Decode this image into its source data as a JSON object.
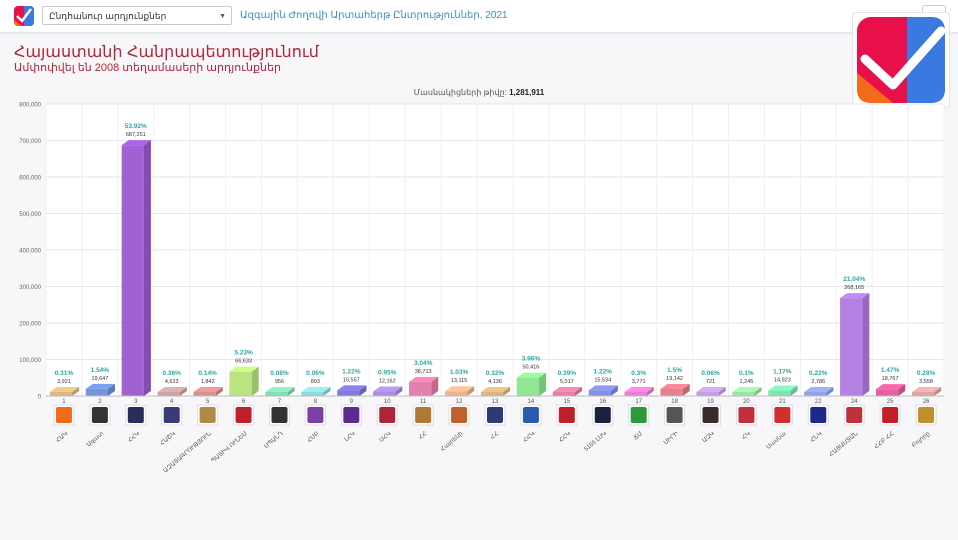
{
  "topbar": {
    "select_value": "Ընդհանուր արդյունքներ",
    "title": "Ազգային Ժողովի Արտահերթ Ընտրություններ, 2021"
  },
  "header": {
    "title": "Հայաստանի Հանրապետությունում",
    "subtitle": "Ամփոփվել են 2008 տեղամասերի արդյունքներ"
  },
  "participants": {
    "label": "Մասնակիցների թիվը:",
    "value": "1,281,911"
  },
  "colors": {
    "accent_red": "#b0253a",
    "link_blue": "#3a8fc9",
    "percent_teal": "#2aa7a5"
  },
  "chart_data": {
    "type": "bar",
    "ylim": [
      0,
      800000
    ],
    "yticks": [
      0,
      100000,
      200000,
      300000,
      400000,
      500000,
      600000,
      700000,
      800000
    ],
    "ytick_labels": [
      "0",
      "100,000",
      "200,000",
      "300,000",
      "400,000",
      "500,000",
      "600,000",
      "700,000",
      "800,000"
    ],
    "grid": true,
    "categories": [
      {
        "num": "1",
        "name": "ՀԱԿ",
        "value": 3921,
        "value_label": "3,921",
        "percent": "0.31%",
        "color": "#d8b47a",
        "logo": "orange-square-icon",
        "logo_color": "#f26a1b"
      },
      {
        "num": "2",
        "name": "Ազատ",
        "value": 19647,
        "value_label": "19,647",
        "percent": "1.54%",
        "color": "#6f8fd6",
        "logo": "swirl-emblem-icon",
        "logo_color": "#333333"
      },
      {
        "num": "3",
        "name": "ՀՀԿ",
        "value": 687251,
        "value_label": "687,251",
        "percent": "53.92%",
        "color": "#9b59d0",
        "logo": "party-logo-icon",
        "logo_color": "#2c2c5a"
      },
      {
        "num": "4",
        "name": "ՀԱՇԿ",
        "value": 4623,
        "value_label": "4,623",
        "percent": "0.36%",
        "color": "#c8a0a0",
        "logo": "shield-emblem-icon",
        "logo_color": "#3a3a7a"
      },
      {
        "num": "5",
        "name": "ԱԶԱՏԱԳՐՈՒԹՅՈՒՆ",
        "value": 1842,
        "value_label": "1,842",
        "percent": "0.14%",
        "color": "#d68a8a",
        "logo": "stripes-logo-icon",
        "logo_color": "#b08a40"
      },
      {
        "num": "6",
        "name": "ՊԱՏԻՎ ՈՒՆԵՄ",
        "value": 66633,
        "value_label": "66,633",
        "percent": "5.23%",
        "color": "#b6e37a",
        "logo": "red-star-icon",
        "logo_color": "#c0202a"
      },
      {
        "num": "7",
        "name": "ՍՊԱՆԴ",
        "value": 956,
        "value_label": "956",
        "percent": "0.08%",
        "color": "#7fdab0",
        "logo": "script-logo-icon",
        "logo_color": "#333333"
      },
      {
        "num": "8",
        "name": "ՀՄԲ",
        "value": 803,
        "value_label": "803",
        "percent": "0.06%",
        "color": "#8ad6d6",
        "logo": "violet-emblem-icon",
        "logo_color": "#7b3fa5"
      },
      {
        "num": "9",
        "name": "ԼՀԿ",
        "value": 15557,
        "value_label": "15,557",
        "percent": "1.22%",
        "color": "#7a73d6",
        "logo": "purple-square-icon",
        "logo_color": "#5b2b8f"
      },
      {
        "num": "10",
        "name": "ՍՀԿ",
        "value": 12162,
        "value_label": "12,162",
        "percent": "0.95%",
        "color": "#a58ad9",
        "logo": "house-logo-icon",
        "logo_color": "#b0253a"
      },
      {
        "num": "11",
        "name": "ՀՀ",
        "value": 38713,
        "value_label": "38,713",
        "percent": "3.04%",
        "color": "#e27aa8",
        "logo": "round-seal-icon",
        "logo_color": "#b07a30"
      },
      {
        "num": "12",
        "name": "Հայրենի",
        "value": 13115,
        "value_label": "13,115",
        "percent": "1.03%",
        "color": "#e8b08a",
        "logo": "sun-emblem-icon",
        "logo_color": "#c0602a"
      },
      {
        "num": "13",
        "name": "ՀՀ",
        "value": 4136,
        "value_label": "4,136",
        "percent": "0.32%",
        "color": "#d6b27a",
        "logo": "banner-logo-icon",
        "logo_color": "#2b3b7a"
      },
      {
        "num": "14",
        "name": "ՀՀԿ",
        "value": 50416,
        "value_label": "50,416",
        "percent": "3.96%",
        "color": "#8ae58f",
        "logo": "wave-logo-icon",
        "logo_color": "#2b5bb0"
      },
      {
        "num": "15",
        "name": "ՀՀԿ",
        "value": 5017,
        "value_label": "5,017",
        "percent": "0.39%",
        "color": "#e07aa0",
        "logo": "figure-logo-icon",
        "logo_color": "#c0202a"
      },
      {
        "num": "16",
        "name": "5165 ԼՍԿ",
        "value": 15534,
        "value_label": "15,534",
        "percent": "1.22%",
        "color": "#7f8ae0",
        "logo": "dark-square-icon",
        "logo_color": "#1a2040"
      },
      {
        "num": "17",
        "name": "ՃՄ",
        "value": 3771,
        "value_label": "3,771",
        "percent": "0.3%",
        "color": "#e57ad0",
        "logo": "green-square-icon",
        "logo_color": "#2a9a3a"
      },
      {
        "num": "18",
        "name": "ՍԻՐԻ",
        "value": 19142,
        "value_label": "19,142",
        "percent": "1.5%",
        "color": "#e07a8a",
        "logo": "text-logo-icon",
        "logo_color": "#555555"
      },
      {
        "num": "19",
        "name": "ԱԶԿ",
        "value": 721,
        "value_label": "721",
        "percent": "0.06%",
        "color": "#c29ae0",
        "logo": "crest-logo-icon",
        "logo_color": "#3a2a2a"
      },
      {
        "num": "20",
        "name": "ՀԿ",
        "value": 1245,
        "value_label": "1,245",
        "percent": "0.1%",
        "color": "#9ae0a0",
        "logo": "mountain-logo-icon",
        "logo_color": "#c0303a"
      },
      {
        "num": "21",
        "name": "Սասնա",
        "value": 14923,
        "value_label": "14,923",
        "percent": "1.17%",
        "color": "#7ae0b0",
        "logo": "eagle-logo-icon",
        "logo_color": "#d0302a"
      },
      {
        "num": "22",
        "name": "ՀՆԿ",
        "value": 2786,
        "value_label": "2,786",
        "percent": "0.22%",
        "color": "#8aa0e0",
        "logo": "flag-logo-icon",
        "logo_color": "#1a2a8a"
      },
      {
        "num": "24",
        "name": "ՀԱՅԱՍՏԱՆ",
        "value": 268165,
        "value_label": "268,165",
        "percent": "21.04%",
        "color": "#b07ae0",
        "logo": "hayastan-logo-icon",
        "logo_color": "#c0303a"
      },
      {
        "num": "25",
        "name": "ՀՀԲ ՀՀ",
        "value": 18767,
        "value_label": "18,767",
        "percent": "1.47%",
        "color": "#e05a9a",
        "logo": "red-figure-icon",
        "logo_color": "#c0202a"
      },
      {
        "num": "26",
        "name": "Բոլորը",
        "value": 3558,
        "value_label": "3,558",
        "percent": "0.28%",
        "color": "#e0a0a0",
        "logo": "gold-emblem-icon",
        "logo_color": "#c0902a"
      }
    ]
  }
}
